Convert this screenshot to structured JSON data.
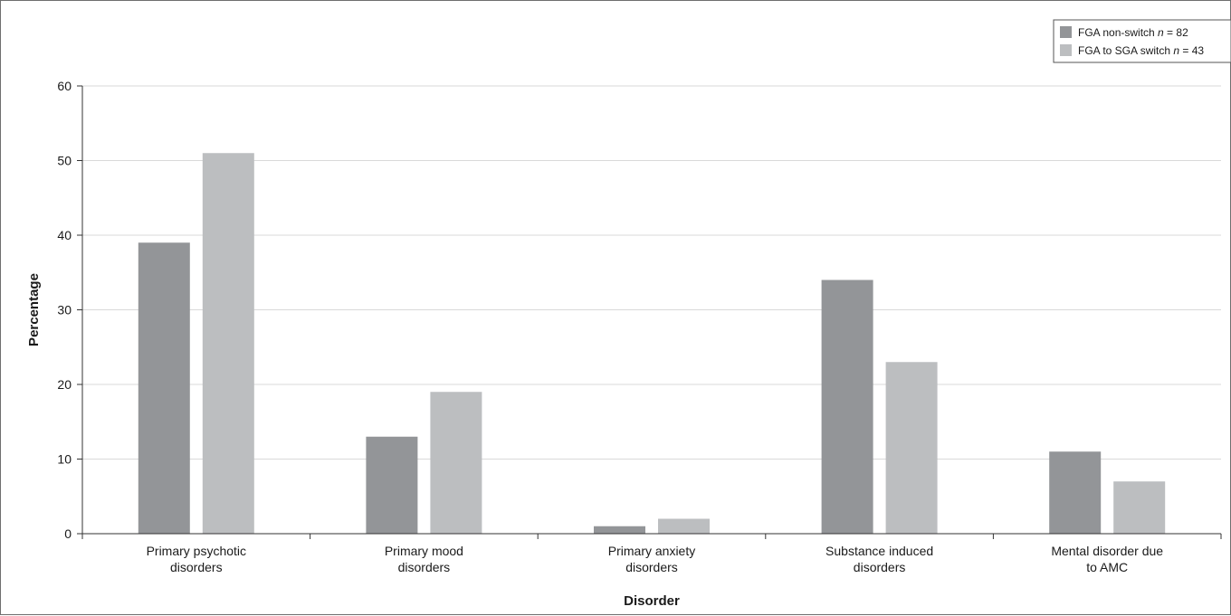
{
  "chart_data": {
    "type": "bar",
    "xlabel": "Disorder",
    "ylabel": "Percentage",
    "ylim": [
      0,
      60
    ],
    "yticks": [
      0,
      10,
      20,
      30,
      40,
      50,
      60
    ],
    "grid": true,
    "legend_position": "top-right",
    "categories": [
      [
        "Primary psychotic",
        "disorders"
      ],
      [
        "Primary mood",
        "disorders"
      ],
      [
        "Primary anxiety",
        "disorders"
      ],
      [
        "Substance induced",
        "disorders"
      ],
      [
        "Mental disorder due",
        "to AMC"
      ]
    ],
    "series": [
      {
        "legend_prefix": "FGA non-switch ",
        "legend_n_symbol": "n",
        "legend_suffix": " = 82",
        "color": "#939598",
        "values": [
          39,
          13,
          1,
          34,
          11
        ]
      },
      {
        "legend_prefix": "FGA to SGA switch ",
        "legend_n_symbol": "n",
        "legend_suffix": " = 43",
        "color": "#bcbec0",
        "values": [
          51,
          19,
          2,
          23,
          7
        ]
      }
    ]
  }
}
